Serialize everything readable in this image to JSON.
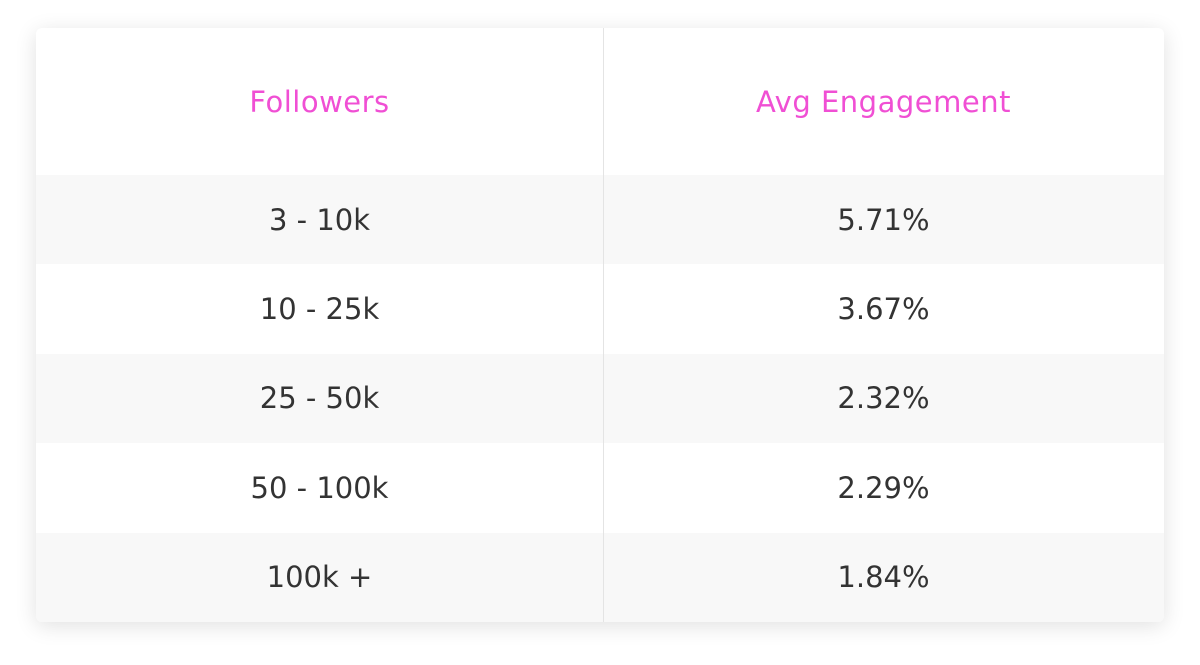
{
  "table": {
    "headers": [
      "Followers",
      "Avg Engagement"
    ],
    "rows": [
      [
        "3 - 10k",
        "5.71%"
      ],
      [
        "10 - 25k",
        "3.67%"
      ],
      [
        "25 - 50k",
        "2.32%"
      ],
      [
        "50 - 100k",
        "2.29%"
      ],
      [
        "100k +",
        "1.84%"
      ]
    ]
  }
}
